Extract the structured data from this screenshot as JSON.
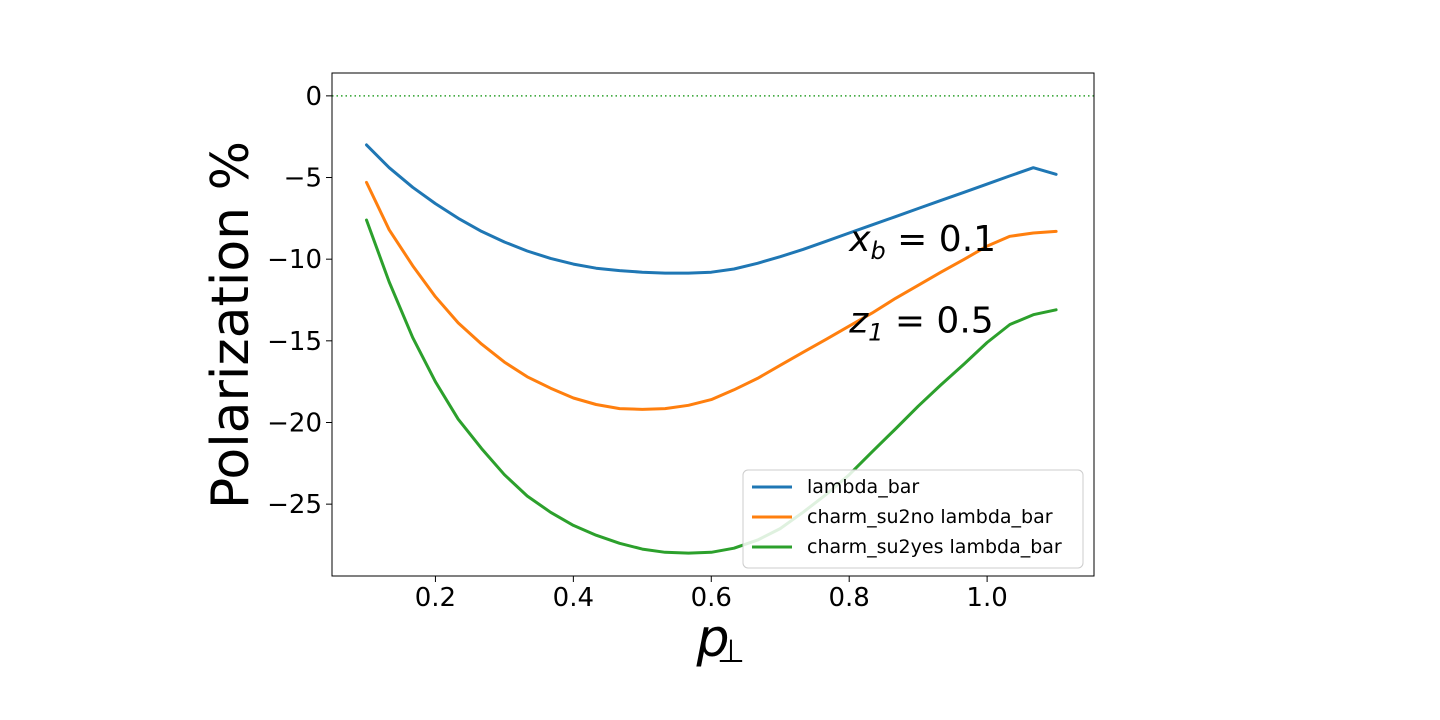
{
  "chart_data": {
    "type": "line",
    "title": "",
    "xlabel": "p",
    "xlabel_subscript": "⊥",
    "ylabel": "Polarization %",
    "xlim": [
      0.05,
      1.155
    ],
    "ylim": [
      -29.4,
      1.4
    ],
    "xticks": [
      0.2,
      0.4,
      0.6,
      0.8,
      1.0
    ],
    "xtick_labels": [
      "0.2",
      "0.4",
      "0.6",
      "0.8",
      "1.0"
    ],
    "yticks": [
      0,
      -5,
      -10,
      -15,
      -20,
      -25
    ],
    "ytick_labels": [
      "0",
      "−5",
      "−10",
      "−15",
      "−20",
      "−25"
    ],
    "grid": false,
    "legend_position": "lower-right",
    "reference_line": {
      "y": 0,
      "style": "dotted",
      "color": "#2ca02c"
    },
    "annotations": [
      {
        "var": "x",
        "sub": "b",
        "rest": " = 0.1",
        "x": 0.8,
        "y": -9.5
      },
      {
        "var": "z",
        "sub": "1",
        "rest": " = 0.5",
        "x": 0.8,
        "y": -14.5
      }
    ],
    "x": [
      0.1,
      0.133,
      0.167,
      0.2,
      0.233,
      0.267,
      0.3,
      0.333,
      0.367,
      0.4,
      0.433,
      0.467,
      0.5,
      0.533,
      0.567,
      0.6,
      0.633,
      0.667,
      0.7,
      0.733,
      0.767,
      0.8,
      0.833,
      0.867,
      0.9,
      0.933,
      0.967,
      1.0,
      1.033,
      1.067,
      1.1
    ],
    "series": [
      {
        "name": "lambda_bar",
        "color": "#1f77b4",
        "values": [
          -3.0,
          -4.4,
          -5.6,
          -6.6,
          -7.5,
          -8.3,
          -8.95,
          -9.5,
          -9.95,
          -10.3,
          -10.55,
          -10.7,
          -10.8,
          -10.85,
          -10.85,
          -10.8,
          -10.6,
          -10.25,
          -9.85,
          -9.4,
          -8.9,
          -8.4,
          -7.9,
          -7.4,
          -6.9,
          -6.4,
          -5.9,
          -5.4,
          -4.9,
          -4.4,
          -4.8
        ]
      },
      {
        "name": "charm_su2no lambda_bar",
        "color": "#ff7f0e",
        "values": [
          -5.3,
          -8.2,
          -10.4,
          -12.3,
          -13.9,
          -15.2,
          -16.3,
          -17.2,
          -17.9,
          -18.5,
          -18.9,
          -19.15,
          -19.2,
          -19.15,
          -18.95,
          -18.6,
          -18.0,
          -17.3,
          -16.5,
          -15.7,
          -14.9,
          -14.1,
          -13.3,
          -12.4,
          -11.6,
          -10.8,
          -10.0,
          -9.2,
          -8.6,
          -8.4,
          -8.3
        ]
      },
      {
        "name": "charm_su2yes lambda_bar",
        "color": "#2ca02c",
        "values": [
          -7.6,
          -11.4,
          -14.8,
          -17.5,
          -19.8,
          -21.6,
          -23.2,
          -24.5,
          -25.5,
          -26.3,
          -26.9,
          -27.4,
          -27.75,
          -27.95,
          -28.0,
          -27.95,
          -27.7,
          -27.2,
          -26.5,
          -25.5,
          -24.4,
          -23.2,
          -21.8,
          -20.4,
          -19.0,
          -17.7,
          -16.4,
          -15.1,
          -14.0,
          -13.4,
          -13.1
        ]
      }
    ]
  }
}
